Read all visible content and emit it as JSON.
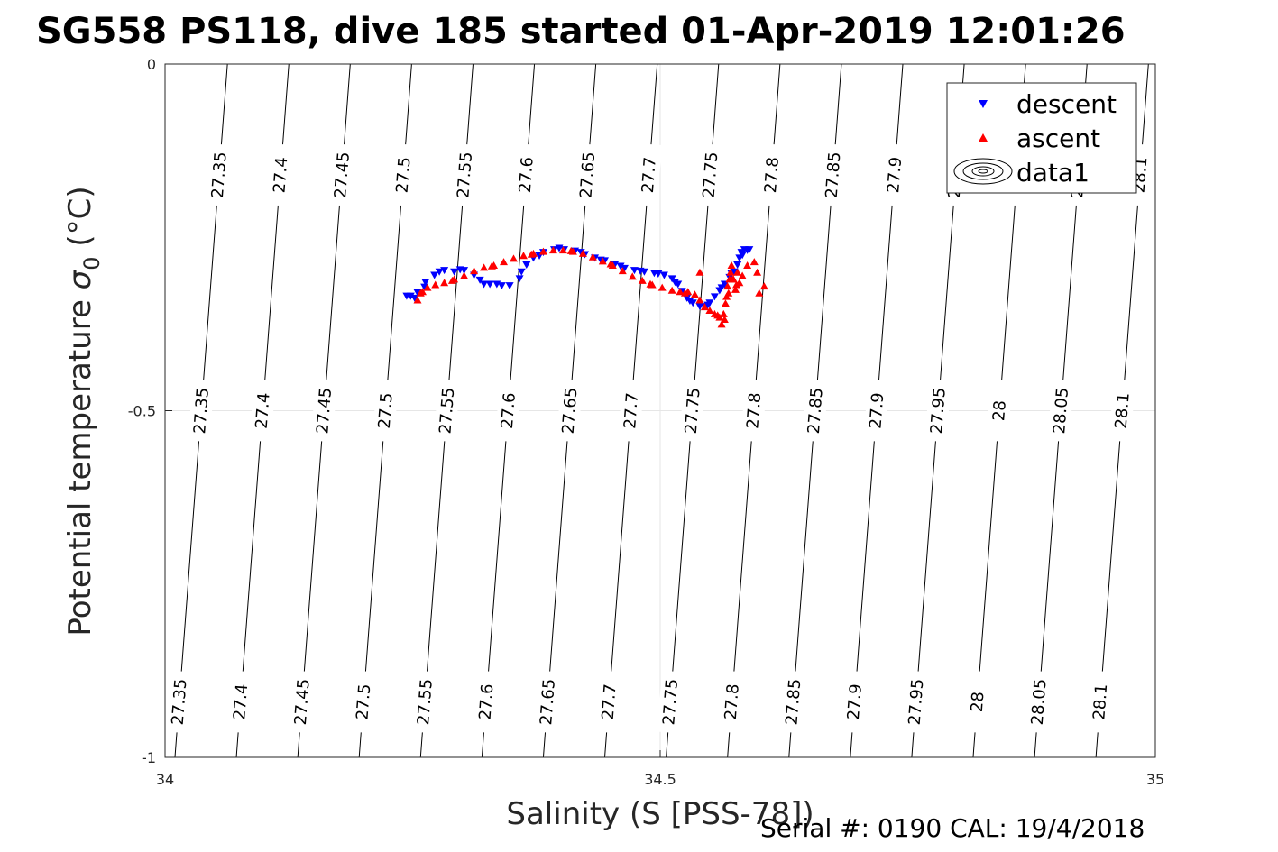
{
  "chart_data": {
    "type": "scatter",
    "title": "SG558 PS118, dive 185 started 01-Apr-2019 12:01:26",
    "xlabel": "Salinity (S [PSS-78])",
    "ylabel_main": "Potential temperature ",
    "ylabel_symbol": "σ",
    "ylabel_sub": "0",
    "ylabel_unit": " (°C)",
    "xlim": [
      34,
      35
    ],
    "ylim": [
      -1,
      0
    ],
    "xticks": [
      34,
      34.5,
      35
    ],
    "xtick_labels": [
      "34",
      "34.5",
      "35"
    ],
    "yticks": [
      0,
      -0.5,
      -1
    ],
    "ytick_labels": [
      "0",
      "-0.5",
      "-1"
    ],
    "grid": true,
    "legend_position": "top-right",
    "footer": "Serial #: 0190  CAL: 19/4/2018",
    "contour_levels": [
      {
        "level": 27.35,
        "label": "27.35",
        "x_top": 34.063,
        "x_bottom": 34.01
      },
      {
        "level": 27.4,
        "label": "27.4",
        "x_top": 34.125,
        "x_bottom": 34.072
      },
      {
        "level": 27.45,
        "label": "27.45",
        "x_top": 34.187,
        "x_bottom": 34.134
      },
      {
        "level": 27.5,
        "label": "27.5",
        "x_top": 34.249,
        "x_bottom": 34.196
      },
      {
        "level": 27.55,
        "label": "27.55",
        "x_top": 34.311,
        "x_bottom": 34.258
      },
      {
        "level": 27.6,
        "label": "27.6",
        "x_top": 34.373,
        "x_bottom": 34.32
      },
      {
        "level": 27.65,
        "label": "27.65",
        "x_top": 34.435,
        "x_bottom": 34.382
      },
      {
        "level": 27.7,
        "label": "27.7",
        "x_top": 34.497,
        "x_bottom": 34.444
      },
      {
        "level": 27.75,
        "label": "27.75",
        "x_top": 34.559,
        "x_bottom": 34.506
      },
      {
        "level": 27.8,
        "label": "27.8",
        "x_top": 34.621,
        "x_bottom": 34.568
      },
      {
        "level": 27.85,
        "label": "27.85",
        "x_top": 34.683,
        "x_bottom": 34.63
      },
      {
        "level": 27.9,
        "label": "27.9",
        "x_top": 34.745,
        "x_bottom": 34.692
      },
      {
        "level": 27.95,
        "label": "27.95",
        "x_top": 34.807,
        "x_bottom": 34.754
      },
      {
        "level": 28.0,
        "label": "28",
        "x_top": 34.869,
        "x_bottom": 34.816
      },
      {
        "level": 28.05,
        "label": "28.05",
        "x_top": 34.931,
        "x_bottom": 34.878
      },
      {
        "level": 28.1,
        "label": "28.1",
        "x_top": 34.993,
        "x_bottom": 34.94
      }
    ],
    "series": [
      {
        "name": "descent",
        "color": "#0000ff",
        "marker": "triangle-down",
        "points": [
          [
            34.248,
            -0.335
          ],
          [
            34.255,
            -0.33
          ],
          [
            34.263,
            -0.315
          ],
          [
            34.272,
            -0.305
          ],
          [
            34.282,
            -0.298
          ],
          [
            34.292,
            -0.3
          ],
          [
            34.302,
            -0.298
          ],
          [
            34.312,
            -0.305
          ],
          [
            34.322,
            -0.318
          ],
          [
            34.335,
            -0.318
          ],
          [
            34.348,
            -0.32
          ],
          [
            34.358,
            -0.31
          ],
          [
            34.365,
            -0.29
          ],
          [
            34.372,
            -0.28
          ],
          [
            34.382,
            -0.272
          ],
          [
            34.393,
            -0.268
          ],
          [
            34.403,
            -0.268
          ],
          [
            34.414,
            -0.27
          ],
          [
            34.424,
            -0.275
          ],
          [
            34.434,
            -0.28
          ],
          [
            34.444,
            -0.284
          ],
          [
            34.454,
            -0.29
          ],
          [
            34.464,
            -0.295
          ],
          [
            34.474,
            -0.298
          ],
          [
            34.484,
            -0.3
          ],
          [
            34.494,
            -0.302
          ],
          [
            34.504,
            -0.305
          ],
          [
            34.512,
            -0.31
          ],
          [
            34.518,
            -0.318
          ],
          [
            34.522,
            -0.328
          ],
          [
            34.527,
            -0.338
          ],
          [
            34.533,
            -0.345
          ],
          [
            34.54,
            -0.35
          ],
          [
            34.545,
            -0.35
          ],
          [
            34.55,
            -0.345
          ],
          [
            34.555,
            -0.336
          ],
          [
            34.56,
            -0.327
          ],
          [
            34.565,
            -0.318
          ],
          [
            34.57,
            -0.308
          ],
          [
            34.575,
            -0.3
          ],
          [
            34.578,
            -0.29
          ],
          [
            34.58,
            -0.28
          ],
          [
            34.582,
            -0.272
          ],
          [
            34.585,
            -0.268
          ],
          [
            34.59,
            -0.268
          ],
          [
            34.244,
            -0.335
          ],
          [
            34.252,
            -0.338
          ],
          [
            34.262,
            -0.322
          ],
          [
            34.277,
            -0.3
          ],
          [
            34.298,
            -0.297
          ],
          [
            34.318,
            -0.312
          ],
          [
            34.328,
            -0.318
          ],
          [
            34.34,
            -0.32
          ],
          [
            34.36,
            -0.3
          ],
          [
            34.378,
            -0.277
          ],
          [
            34.398,
            -0.266
          ],
          [
            34.42,
            -0.272
          ],
          [
            34.44,
            -0.283
          ],
          [
            34.46,
            -0.292
          ],
          [
            34.48,
            -0.299
          ],
          [
            34.498,
            -0.303
          ],
          [
            34.515,
            -0.315
          ],
          [
            34.53,
            -0.342
          ],
          [
            34.548,
            -0.348
          ],
          [
            34.562,
            -0.323
          ],
          [
            34.572,
            -0.303
          ],
          [
            34.583,
            -0.276
          ],
          [
            34.588,
            -0.269
          ]
        ]
      },
      {
        "name": "ascent",
        "color": "#ff0000",
        "marker": "triangle-up",
        "points": [
          [
            34.255,
            -0.34
          ],
          [
            34.258,
            -0.33
          ],
          [
            34.265,
            -0.322
          ],
          [
            34.273,
            -0.318
          ],
          [
            34.282,
            -0.315
          ],
          [
            34.292,
            -0.31
          ],
          [
            34.302,
            -0.305
          ],
          [
            34.312,
            -0.298
          ],
          [
            34.322,
            -0.293
          ],
          [
            34.332,
            -0.29
          ],
          [
            34.342,
            -0.285
          ],
          [
            34.352,
            -0.28
          ],
          [
            34.362,
            -0.276
          ],
          [
            34.372,
            -0.273
          ],
          [
            34.382,
            -0.27
          ],
          [
            34.392,
            -0.268
          ],
          [
            34.402,
            -0.268
          ],
          [
            34.412,
            -0.27
          ],
          [
            34.422,
            -0.273
          ],
          [
            34.432,
            -0.278
          ],
          [
            34.442,
            -0.284
          ],
          [
            34.452,
            -0.29
          ],
          [
            34.462,
            -0.298
          ],
          [
            34.472,
            -0.306
          ],
          [
            34.482,
            -0.312
          ],
          [
            34.492,
            -0.318
          ],
          [
            34.502,
            -0.322
          ],
          [
            34.512,
            -0.326
          ],
          [
            34.52,
            -0.328
          ],
          [
            34.528,
            -0.328
          ],
          [
            34.535,
            -0.332
          ],
          [
            34.54,
            -0.34
          ],
          [
            34.545,
            -0.35
          ],
          [
            34.55,
            -0.355
          ],
          [
            34.555,
            -0.36
          ],
          [
            34.56,
            -0.365
          ],
          [
            34.562,
            -0.375
          ],
          [
            34.565,
            -0.368
          ],
          [
            34.566,
            -0.345
          ],
          [
            34.567,
            -0.335
          ],
          [
            34.568,
            -0.32
          ],
          [
            34.57,
            -0.31
          ],
          [
            34.571,
            -0.3
          ],
          [
            34.572,
            -0.29
          ],
          [
            34.574,
            -0.31
          ],
          [
            34.576,
            -0.325
          ],
          [
            34.578,
            -0.3
          ],
          [
            34.58,
            -0.315
          ],
          [
            34.583,
            -0.305
          ],
          [
            34.588,
            -0.29
          ],
          [
            34.595,
            -0.285
          ],
          [
            34.598,
            -0.3
          ],
          [
            34.6,
            -0.33
          ],
          [
            34.605,
            -0.32
          ],
          [
            34.54,
            -0.3
          ],
          [
            34.564,
            -0.36
          ],
          [
            34.569,
            -0.33
          ],
          [
            34.573,
            -0.31
          ],
          [
            34.577,
            -0.318
          ],
          [
            34.26,
            -0.328
          ],
          [
            34.29,
            -0.312
          ],
          [
            34.33,
            -0.291
          ],
          [
            34.37,
            -0.274
          ],
          [
            34.41,
            -0.269
          ],
          [
            34.45,
            -0.288
          ],
          [
            34.49,
            -0.317
          ],
          [
            34.525,
            -0.33
          ],
          [
            34.558,
            -0.362
          ]
        ]
      }
    ],
    "legend": [
      {
        "label": "descent",
        "marker": "triangle-down",
        "color": "#0000ff"
      },
      {
        "label": "ascent",
        "marker": "triangle-up",
        "color": "#ff0000"
      },
      {
        "label": "data1",
        "marker": "contour",
        "color": "#000000"
      }
    ]
  }
}
